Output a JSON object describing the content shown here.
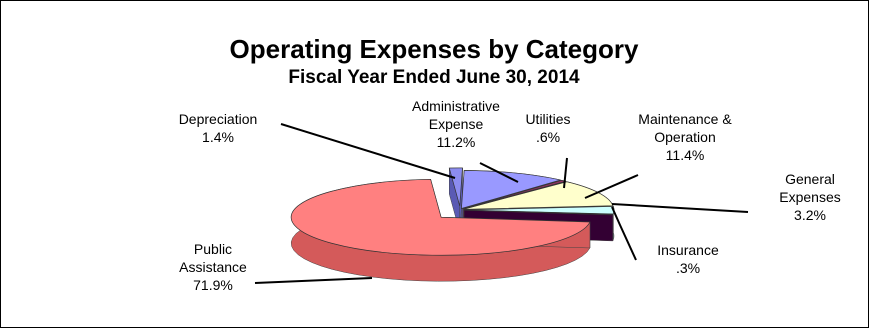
{
  "chart_data": {
    "type": "pie",
    "title": "Operating Expenses by Category",
    "subtitle": "Fiscal Year Ended June 30, 2014",
    "slices": [
      {
        "id": "depreciation",
        "label_lines": [
          "Depreciation"
        ],
        "value_label": "1.4%",
        "value": 1.4,
        "color": "#8c8cf0",
        "dark": "#5a5ab4"
      },
      {
        "id": "administrative-expense",
        "label_lines": [
          "Administrative",
          "Expense"
        ],
        "value_label": "11.2%",
        "value": 11.2,
        "color": "#9999ff",
        "dark": "#6060c8"
      },
      {
        "id": "utilities",
        "label_lines": [
          "Utilities"
        ],
        "value_label": ".6%",
        "value": 0.6,
        "color": "#993366",
        "dark": "#5e1f3f"
      },
      {
        "id": "maintenance-operation",
        "label_lines": [
          "Maintenance &",
          "Operation"
        ],
        "value_label": "11.4%",
        "value": 11.4,
        "color": "#ffffcc",
        "dark": "#c8c896"
      },
      {
        "id": "general-expenses",
        "label_lines": [
          "General",
          "Expenses"
        ],
        "value_label": "3.2%",
        "value": 3.2,
        "color": "#ccffff",
        "dark": "#8fbfbf"
      },
      {
        "id": "insurance",
        "label_lines": [
          "Insurance"
        ],
        "value_label": ".3%",
        "value": 0.3,
        "color": "#660066",
        "dark": "#330033"
      },
      {
        "id": "public-assistance",
        "label_lines": [
          "Public",
          "Assistance"
        ],
        "value_label": "71.9%",
        "value": 71.9,
        "color": "#ff8080",
        "dark": "#d45a5a"
      }
    ]
  }
}
